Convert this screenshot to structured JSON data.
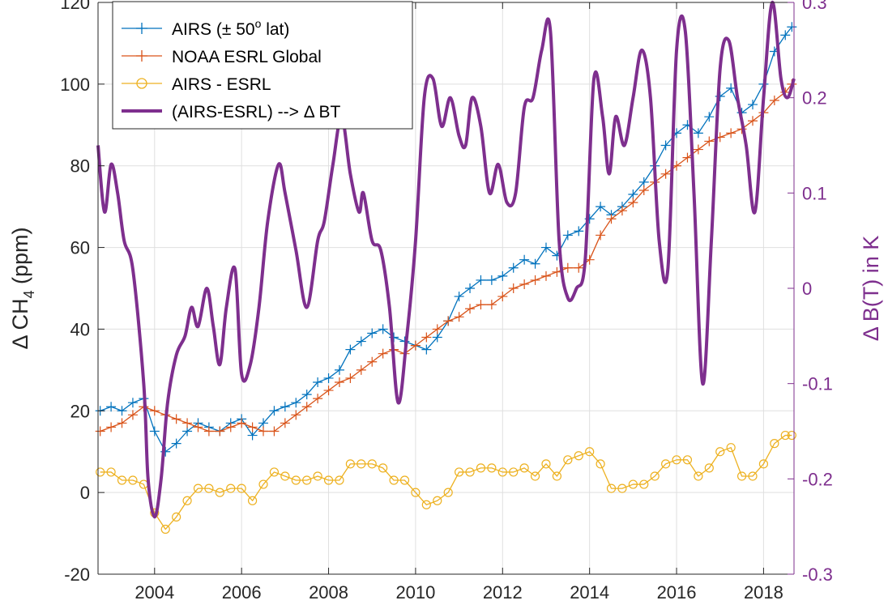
{
  "chart_data": {
    "type": "line",
    "ylabel_left": "Δ CH",
    "ylabel_left_sub": "4",
    "ylabel_left_unit": " (ppm)",
    "ylabel_right": "Δ B(T) in K",
    "xlim": [
      2002.7,
      2018.7
    ],
    "ylim_left": [
      -20,
      120
    ],
    "ylim_right": [
      -0.3,
      0.3
    ],
    "grid": true,
    "legend_position": "top-left",
    "x_ticks": [
      2004,
      2006,
      2008,
      2010,
      2012,
      2014,
      2016,
      2018
    ],
    "y_ticks_left": [
      -20,
      0,
      20,
      40,
      60,
      80,
      100,
      120
    ],
    "y_ticks_right": [
      -0.3,
      -0.2,
      -0.1,
      0,
      0.1,
      0.2,
      0.3
    ],
    "y_ticks_right_labels": [
      "-0.3",
      "-0.2",
      "-0.1",
      "0",
      "0.1",
      "0.2",
      "0.3"
    ],
    "colors": {
      "airs": "#0072BD",
      "esrl": "#D95319",
      "diff": "#EDB120",
      "bt": "#7E2F8E"
    },
    "legend": [
      {
        "label_main": "AIRS (± 50",
        "label_sup": "o",
        "label_tail": " lat)",
        "marker": "plus",
        "color": "#0072BD"
      },
      {
        "label_main": "NOAA ESRL Global",
        "marker": "plus",
        "color": "#D95319"
      },
      {
        "label_main": "AIRS - ESRL",
        "marker": "circle",
        "color": "#EDB120"
      },
      {
        "label_main": "(AIRS-ESRL) --> Δ BT",
        "marker": "none",
        "color": "#7E2F8E"
      }
    ],
    "series": [
      {
        "name": "AIRS (± 50o lat)",
        "axis": "left",
        "x": [
          2002.75,
          2003.0,
          2003.25,
          2003.5,
          2003.75,
          2004.0,
          2004.25,
          2004.5,
          2004.75,
          2005.0,
          2005.25,
          2005.5,
          2005.75,
          2006.0,
          2006.25,
          2006.5,
          2006.75,
          2007.0,
          2007.25,
          2007.5,
          2007.75,
          2008.0,
          2008.25,
          2008.5,
          2008.75,
          2009.0,
          2009.25,
          2009.5,
          2009.75,
          2010.0,
          2010.25,
          2010.5,
          2010.75,
          2011.0,
          2011.25,
          2011.5,
          2011.75,
          2012.0,
          2012.25,
          2012.5,
          2012.75,
          2013.0,
          2013.25,
          2013.5,
          2013.75,
          2014.0,
          2014.25,
          2014.5,
          2014.75,
          2015.0,
          2015.25,
          2015.5,
          2015.75,
          2016.0,
          2016.25,
          2016.5,
          2016.75,
          2017.0,
          2017.25,
          2017.5,
          2017.75,
          2018.0,
          2018.25,
          2018.5,
          2018.65
        ],
        "values": [
          20,
          21,
          20,
          22,
          23,
          15,
          10,
          12,
          15,
          17,
          16,
          15,
          17,
          18,
          14,
          17,
          20,
          21,
          22,
          24,
          27,
          28,
          30,
          35,
          37,
          39,
          40,
          38,
          37,
          36,
          35,
          38,
          42,
          48,
          50,
          52,
          52,
          53,
          55,
          57,
          56,
          60,
          58,
          63,
          64,
          67,
          70,
          68,
          70,
          73,
          76,
          80,
          85,
          88,
          90,
          88,
          92,
          97,
          99,
          93,
          95,
          100,
          108,
          112,
          114
        ]
      },
      {
        "name": "NOAA ESRL Global",
        "axis": "left",
        "x": [
          2002.75,
          2003.0,
          2003.25,
          2003.5,
          2003.75,
          2004.0,
          2004.25,
          2004.5,
          2004.75,
          2005.0,
          2005.25,
          2005.5,
          2005.75,
          2006.0,
          2006.25,
          2006.5,
          2006.75,
          2007.0,
          2007.25,
          2007.5,
          2007.75,
          2008.0,
          2008.25,
          2008.5,
          2008.75,
          2009.0,
          2009.25,
          2009.5,
          2009.75,
          2010.0,
          2010.25,
          2010.5,
          2010.75,
          2011.0,
          2011.25,
          2011.5,
          2011.75,
          2012.0,
          2012.25,
          2012.5,
          2012.75,
          2013.0,
          2013.25,
          2013.5,
          2013.75,
          2014.0,
          2014.25,
          2014.5,
          2014.75,
          2015.0,
          2015.25,
          2015.5,
          2015.75,
          2016.0,
          2016.25,
          2016.5,
          2016.75,
          2017.0,
          2017.25,
          2017.5,
          2017.75,
          2018.0,
          2018.25,
          2018.5,
          2018.65
        ],
        "values": [
          15,
          16,
          17,
          19,
          21,
          20,
          19,
          18,
          17,
          16,
          15,
          15,
          16,
          17,
          16,
          15,
          15,
          17,
          19,
          21,
          23,
          25,
          27,
          28,
          30,
          32,
          34,
          35,
          34,
          36,
          38,
          40,
          42,
          43,
          45,
          46,
          46,
          48,
          50,
          51,
          52,
          53,
          54,
          55,
          55,
          57,
          63,
          67,
          69,
          71,
          74,
          76,
          78,
          80,
          82,
          84,
          86,
          87,
          88,
          89,
          91,
          93,
          96,
          98,
          100
        ]
      },
      {
        "name": "AIRS - ESRL",
        "axis": "left",
        "x": [
          2002.75,
          2003.0,
          2003.25,
          2003.5,
          2003.75,
          2004.0,
          2004.25,
          2004.5,
          2004.75,
          2005.0,
          2005.25,
          2005.5,
          2005.75,
          2006.0,
          2006.25,
          2006.5,
          2006.75,
          2007.0,
          2007.25,
          2007.5,
          2007.75,
          2008.0,
          2008.25,
          2008.5,
          2008.75,
          2009.0,
          2009.25,
          2009.5,
          2009.75,
          2010.0,
          2010.25,
          2010.5,
          2010.75,
          2011.0,
          2011.25,
          2011.5,
          2011.75,
          2012.0,
          2012.25,
          2012.5,
          2012.75,
          2013.0,
          2013.25,
          2013.5,
          2013.75,
          2014.0,
          2014.25,
          2014.5,
          2014.75,
          2015.0,
          2015.25,
          2015.5,
          2015.75,
          2016.0,
          2016.25,
          2016.5,
          2016.75,
          2017.0,
          2017.25,
          2017.5,
          2017.75,
          2018.0,
          2018.25,
          2018.5,
          2018.65
        ],
        "values": [
          5,
          5,
          3,
          3,
          2,
          -5,
          -9,
          -6,
          -2,
          1,
          1,
          0,
          1,
          1,
          -2,
          2,
          5,
          4,
          3,
          3,
          4,
          3,
          3,
          7,
          7,
          7,
          6,
          3,
          3,
          0,
          -3,
          -2,
          0,
          5,
          5,
          6,
          6,
          5,
          5,
          6,
          4,
          7,
          4,
          8,
          9,
          10,
          7,
          1,
          1,
          2,
          2,
          4,
          7,
          8,
          8,
          4,
          6,
          10,
          11,
          4,
          4,
          7,
          12,
          14,
          14
        ]
      },
      {
        "name": "(AIRS-ESRL) --> Δ BT",
        "axis": "right",
        "x": [
          2002.7,
          2002.85,
          2003.0,
          2003.15,
          2003.3,
          2003.5,
          2003.75,
          2003.85,
          2004.0,
          2004.15,
          2004.3,
          2004.5,
          2004.7,
          2004.85,
          2005.0,
          2005.2,
          2005.35,
          2005.5,
          2005.65,
          2005.85,
          2006.0,
          2006.2,
          2006.4,
          2006.6,
          2006.85,
          2007.0,
          2007.25,
          2007.5,
          2007.75,
          2007.9,
          2008.1,
          2008.3,
          2008.5,
          2008.7,
          2008.8,
          2009.0,
          2009.2,
          2009.4,
          2009.6,
          2009.8,
          2010.0,
          2010.2,
          2010.4,
          2010.6,
          2010.8,
          2011.0,
          2011.15,
          2011.3,
          2011.5,
          2011.7,
          2011.9,
          2012.1,
          2012.3,
          2012.5,
          2012.7,
          2012.9,
          2013.1,
          2013.3,
          2013.5,
          2013.7,
          2013.9,
          2014.1,
          2014.3,
          2014.45,
          2014.6,
          2014.8,
          2015.0,
          2015.2,
          2015.4,
          2015.6,
          2015.8,
          2016.0,
          2016.2,
          2016.4,
          2016.6,
          2016.8,
          2017.0,
          2017.2,
          2017.4,
          2017.6,
          2017.8,
          2018.0,
          2018.2,
          2018.4,
          2018.55,
          2018.7
        ],
        "values": [
          0.15,
          0.08,
          0.13,
          0.1,
          0.05,
          0.02,
          -0.1,
          -0.2,
          -0.24,
          -0.2,
          -0.12,
          -0.07,
          -0.05,
          -0.02,
          -0.04,
          0.0,
          -0.04,
          -0.08,
          -0.02,
          0.02,
          -0.09,
          -0.08,
          -0.02,
          0.07,
          0.13,
          0.1,
          0.04,
          -0.02,
          0.05,
          0.07,
          0.13,
          0.18,
          0.12,
          0.08,
          0.1,
          0.05,
          0.04,
          -0.02,
          -0.12,
          -0.05,
          0.05,
          0.2,
          0.22,
          0.17,
          0.2,
          0.16,
          0.15,
          0.2,
          0.17,
          0.1,
          0.13,
          0.09,
          0.1,
          0.19,
          0.2,
          0.25,
          0.27,
          0.05,
          -0.01,
          0.0,
          0.03,
          0.22,
          0.18,
          0.12,
          0.18,
          0.15,
          0.2,
          0.25,
          0.2,
          0.05,
          0.02,
          0.25,
          0.27,
          0.1,
          -0.1,
          0.05,
          0.23,
          0.26,
          0.2,
          0.15,
          0.08,
          0.2,
          0.3,
          0.22,
          0.2,
          0.22
        ]
      }
    ]
  }
}
